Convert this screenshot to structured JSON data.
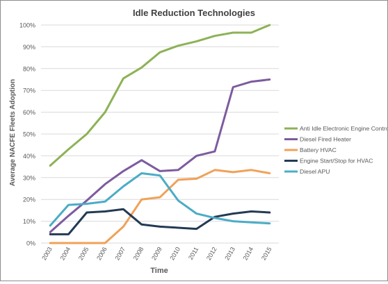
{
  "chart_data": {
    "type": "line",
    "title": "Idle Reduction Technologies",
    "xlabel": "Time",
    "ylabel": "Average NACFE Fleets Adoption",
    "categories": [
      "2003",
      "2004",
      "2005",
      "2006",
      "2007",
      "2008",
      "2009",
      "2010",
      "2011",
      "2012",
      "2013",
      "2014",
      "2015"
    ],
    "ylim": [
      0,
      100
    ],
    "yticks": [
      "0%",
      "10%",
      "20%",
      "30%",
      "40%",
      "50%",
      "60%",
      "70%",
      "80%",
      "90%",
      "100%"
    ],
    "grid": true,
    "legend_position": "right",
    "series": [
      {
        "name": "Anti Idle Electronic Engine Controls",
        "color": "#8db256",
        "values": [
          35.5,
          43,
          50,
          60,
          75.5,
          80.5,
          87.5,
          90.5,
          92.5,
          95,
          96.5,
          96.5,
          100
        ]
      },
      {
        "name": "Diesel Fired Heater",
        "color": "#7d5b9e",
        "values": [
          5,
          12.5,
          19.5,
          27,
          33,
          38,
          33,
          33.5,
          40,
          42,
          71.5,
          74,
          75
        ]
      },
      {
        "name": "Battery HVAC",
        "color": "#f0a158",
        "values": [
          0,
          0,
          0,
          0,
          7.5,
          20,
          21,
          29,
          29.5,
          33.5,
          32.5,
          33.5,
          32
        ]
      },
      {
        "name": "Engine Start/Stop for HVAC",
        "color": "#233a54",
        "values": [
          4,
          4,
          14,
          14.5,
          15.5,
          8.5,
          7.5,
          7,
          6.5,
          12,
          13.5,
          14.5,
          14
        ]
      },
      {
        "name": "Diesel APU",
        "color": "#4bacc6",
        "values": [
          8,
          17.5,
          18,
          19,
          26,
          32,
          31,
          19.5,
          13.5,
          11.5,
          10,
          9.5,
          9
        ]
      }
    ]
  }
}
